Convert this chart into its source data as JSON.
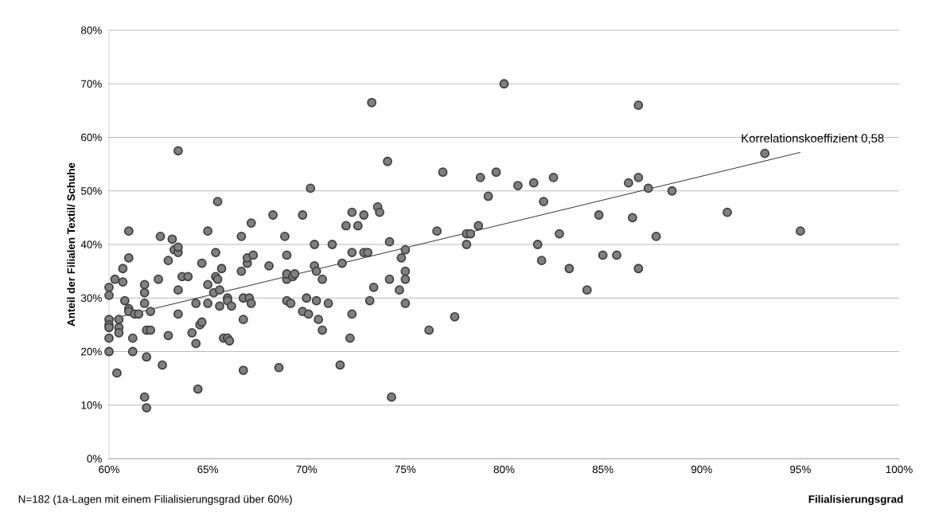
{
  "chart_data": {
    "type": "scatter",
    "xlabel": "Filialisierungsgrad",
    "ylabel": "Anteil der Filialen Textil/ Schuhe",
    "xlim": [
      60,
      100
    ],
    "ylim": [
      0,
      80
    ],
    "xticks": [
      {
        "value": 60,
        "label": "60%"
      },
      {
        "value": 65,
        "label": "65%"
      },
      {
        "value": 70,
        "label": "70%"
      },
      {
        "value": 75,
        "label": "75%"
      },
      {
        "value": 80,
        "label": "80%"
      },
      {
        "value": 85,
        "label": "85%"
      },
      {
        "value": 90,
        "label": "90%"
      },
      {
        "value": 95,
        "label": "95%"
      },
      {
        "value": 100,
        "label": "100%"
      }
    ],
    "yticks": [
      {
        "value": 0,
        "label": "0%"
      },
      {
        "value": 10,
        "label": "10%"
      },
      {
        "value": 20,
        "label": "20%"
      },
      {
        "value": 30,
        "label": "30%"
      },
      {
        "value": 40,
        "label": "40%"
      },
      {
        "value": 50,
        "label": "50%"
      },
      {
        "value": 60,
        "label": "60%"
      },
      {
        "value": 70,
        "label": "70%"
      },
      {
        "value": 80,
        "label": "80%"
      }
    ],
    "grid": "y",
    "annotations": [
      {
        "text": "Korrelationskoeffizient 0,58",
        "x": 95,
        "y": 57.2
      },
      "N=182  (1a-Lagen mit einem Filialisierungsgrad über 60%)"
    ],
    "series": [
      {
        "marker": "circle",
        "color": "#808080",
        "x": [
          60,
          60,
          60,
          60,
          60,
          60,
          60,
          60.3,
          60.5,
          60.5,
          60.5,
          60.4,
          60.7,
          60.7,
          60.8,
          61,
          61,
          61,
          61,
          61.2,
          61.2,
          61.3,
          61.5,
          61.8,
          61.8,
          61.8,
          61.8,
          61.9,
          61.9,
          61.9,
          62.1,
          62.1,
          62.5,
          62.6,
          62.7,
          63,
          63,
          63.2,
          63.3,
          63.5,
          63.5,
          63.5,
          63.5,
          63.5,
          63.7,
          64,
          64.2,
          64.4,
          64.4,
          64.5,
          64.6,
          64.7,
          64.7,
          65,
          65,
          65,
          65.3,
          65.4,
          65.4,
          65.5,
          65.5,
          65.6,
          65.6,
          65.7,
          65.8,
          66,
          66,
          66,
          66.1,
          66.2,
          66.7,
          66.7,
          66.8,
          66.8,
          66.8,
          67,
          67,
          67.1,
          67.2,
          67.2,
          67.3,
          68.1,
          68.3,
          68.6,
          68.9,
          69,
          69,
          69,
          69,
          69.2,
          69.3,
          69.4,
          69.8,
          69.8,
          70,
          70.1,
          70.2,
          70.4,
          70.4,
          70.5,
          70.5,
          70.6,
          70.8,
          70.8,
          71.1,
          71.3,
          71.7,
          71.8,
          72,
          72.3,
          72.2,
          72.3,
          72.3,
          72.6,
          72.9,
          72.9,
          73.1,
          73.2,
          73.3,
          73.4,
          73.6,
          73.7,
          74.1,
          74.2,
          74.2,
          74.3,
          74.7,
          74.8,
          75,
          75,
          75,
          75,
          76.2,
          76.6,
          76.9,
          77.5,
          78.1,
          78.1,
          78.3,
          78.7,
          78.8,
          79.2,
          79.6,
          80,
          80.7,
          81.5,
          81.7,
          81.9,
          82,
          82.5,
          82.8,
          83.3,
          84.2,
          84.8,
          85,
          85.7,
          86.3,
          86.5,
          86.8,
          86.8,
          86.8,
          87.3,
          87.7,
          88.5,
          91.3,
          93.2,
          95
        ],
        "values": [
          32,
          30.5,
          26,
          25,
          24.5,
          22.5,
          20,
          33.5,
          26,
          24.5,
          23.5,
          16,
          33,
          35.5,
          29.5,
          28,
          27.5,
          42.5,
          37.5,
          22.5,
          20,
          27,
          27,
          32.5,
          31,
          29,
          11.5,
          9.5,
          19,
          24,
          24,
          27.5,
          33.5,
          41.5,
          17.5,
          23,
          37,
          41,
          39,
          38.5,
          39.5,
          57.5,
          31.5,
          27,
          34,
          34,
          23.5,
          21.5,
          29,
          13,
          25,
          25.5,
          36.5,
          32.5,
          42.5,
          29,
          31,
          38.5,
          34,
          48,
          33.5,
          28.5,
          31.5,
          35.5,
          22.5,
          30,
          22.5,
          29.5,
          22,
          28.5,
          41.5,
          35,
          30,
          26,
          16.5,
          36.5,
          37.5,
          30,
          29,
          44,
          38,
          36,
          45.5,
          17,
          41.5,
          33.5,
          34.5,
          38,
          29.5,
          29,
          34,
          34.5,
          45.5,
          27.5,
          30,
          27,
          50.5,
          36,
          40,
          35,
          29.5,
          26,
          33.5,
          24,
          29,
          40,
          17.5,
          36.5,
          43.5,
          46,
          22.5,
          27,
          38.5,
          43.5,
          45.5,
          38.5,
          38.5,
          29.5,
          66.5,
          32,
          47,
          46,
          55.5,
          40.5,
          33.5,
          11.5,
          31.5,
          37.5,
          39,
          35,
          33.5,
          29,
          24,
          42.5,
          53.5,
          26.5,
          42,
          40,
          42,
          43.5,
          52.5,
          49,
          53.5,
          70,
          51,
          51.5,
          40,
          37,
          48,
          52.5,
          42,
          35.5,
          31.5,
          45.5,
          38,
          38,
          51.5,
          45,
          66,
          52.5,
          35.5,
          50.5,
          41.5,
          50,
          46,
          57,
          42.5
        ]
      },
      {
        "type": "line",
        "marker": "none",
        "color": "#000000",
        "x": [
          60,
          95
        ],
        "values": [
          26,
          57.2
        ]
      }
    ]
  }
}
